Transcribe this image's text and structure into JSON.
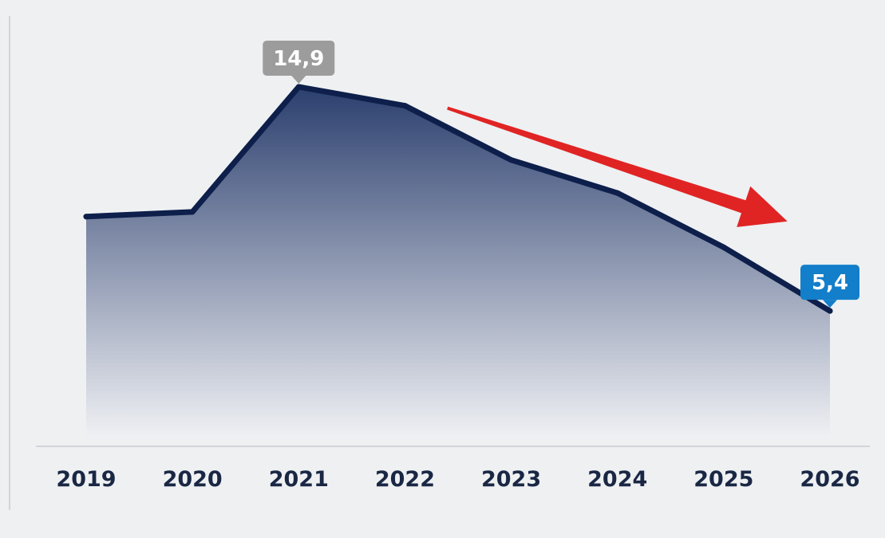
{
  "chart_data": {
    "type": "area",
    "categories": [
      "2019",
      "2020",
      "2021",
      "2022",
      "2023",
      "2024",
      "2025",
      "2026"
    ],
    "series": [
      {
        "values": [
          9.4,
          9.6,
          14.9,
          14.1,
          11.8,
          10.4,
          8.1,
          5.4
        ]
      }
    ],
    "annotations": [
      {
        "index": 2,
        "text": "14,9",
        "style": "gray-callout"
      },
      {
        "index": 7,
        "text": "5,4",
        "style": "blue-callout"
      }
    ],
    "trend_arrow": {
      "from_index": 3.4,
      "from_value": 14.0,
      "to_index": 6.6,
      "to_value": 9.2,
      "direction": "down",
      "color": "#e02424"
    },
    "title": "",
    "xlabel": "",
    "ylabel": "",
    "ylim": [
      0,
      17.5
    ],
    "grid": false,
    "legend": "none"
  },
  "colors": {
    "line": "#0d1f4a",
    "fill_top": "#2b3f6e",
    "fill_bottom": "#f0f1f4",
    "callout_gray": "#9c9c9c",
    "callout_blue": "#137ec9",
    "axis_text": "#1a2744",
    "baseline": "#d2d4d8"
  }
}
